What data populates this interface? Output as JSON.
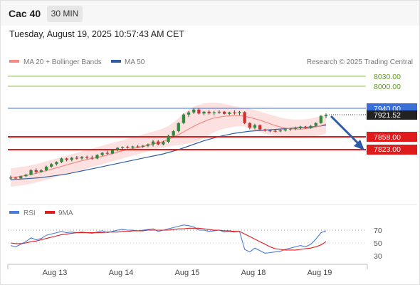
{
  "header": {
    "symbol": "Cac 40",
    "timeframe": "30 MIN",
    "datetime": "Tuesday, August 19, 2025 10:57:43 AM CET"
  },
  "legend": {
    "ma20_label": "MA 20 + Bollinger Bands",
    "ma50_label": "MA 50",
    "copyright": "Research © 2025 Trading Central",
    "rsi_label": "RSI",
    "ma9_label": "9MA"
  },
  "colors": {
    "ma20": "#f28b82",
    "ma50": "#2e5d9f",
    "band": "#fde0e0",
    "up": "#2e8b3a",
    "down": "#d32f2f",
    "resistance": "#8bc34a",
    "pivot": "#3b6fd8",
    "support": "#e01b1b",
    "arrow": "#2a5ca8",
    "rsi": "#4a7bd8",
    "rsi_ma": "#e01b1b"
  },
  "levels": {
    "r2": "8030.00",
    "r1": "8000.00",
    "pivot": "7940.00",
    "last": "7921.52",
    "s1": "7858.00",
    "s2": "7823.00"
  },
  "x_axis": [
    "Aug 13",
    "Aug 14",
    "Aug 15",
    "Aug 18",
    "Aug 19"
  ],
  "rsi_axis": [
    "70",
    "50",
    "30"
  ],
  "chart_data": {
    "type": "candlestick",
    "ylim": [
      7700,
      8060
    ],
    "candles": [
      [
        7744,
        7750,
        7738,
        7744
      ],
      [
        7744,
        7746,
        7740,
        7742
      ],
      [
        7742,
        7750,
        7740,
        7748
      ],
      [
        7748,
        7755,
        7745,
        7752
      ],
      [
        7752,
        7768,
        7750,
        7765
      ],
      [
        7765,
        7770,
        7755,
        7760
      ],
      [
        7760,
        7768,
        7758,
        7765
      ],
      [
        7765,
        7778,
        7762,
        7775
      ],
      [
        7775,
        7785,
        7772,
        7782
      ],
      [
        7782,
        7790,
        7778,
        7788
      ],
      [
        7788,
        7800,
        7785,
        7798
      ],
      [
        7798,
        7800,
        7790,
        7794
      ],
      [
        7794,
        7802,
        7790,
        7800
      ],
      [
        7800,
        7805,
        7795,
        7798
      ],
      [
        7798,
        7805,
        7795,
        7802
      ],
      [
        7802,
        7806,
        7796,
        7800
      ],
      [
        7800,
        7806,
        7795,
        7798
      ],
      [
        7798,
        7810,
        7796,
        7808
      ],
      [
        7808,
        7816,
        7805,
        7814
      ],
      [
        7814,
        7820,
        7808,
        7812
      ],
      [
        7812,
        7825,
        7810,
        7822
      ],
      [
        7822,
        7830,
        7818,
        7828
      ],
      [
        7828,
        7832,
        7824,
        7830
      ],
      [
        7830,
        7834,
        7826,
        7829
      ],
      [
        7829,
        7834,
        7826,
        7832
      ],
      [
        7832,
        7836,
        7828,
        7831
      ],
      [
        7831,
        7836,
        7828,
        7834
      ],
      [
        7834,
        7840,
        7830,
        7838
      ],
      [
        7838,
        7850,
        7832,
        7846
      ],
      [
        7846,
        7850,
        7835,
        7838
      ],
      [
        7838,
        7848,
        7835,
        7845
      ],
      [
        7845,
        7865,
        7842,
        7862
      ],
      [
        7862,
        7878,
        7858,
        7875
      ],
      [
        7875,
        7900,
        7872,
        7898
      ],
      [
        7898,
        7925,
        7895,
        7922
      ],
      [
        7922,
        7932,
        7915,
        7928
      ],
      [
        7928,
        7940,
        7924,
        7936
      ],
      [
        7936,
        7940,
        7922,
        7925
      ],
      [
        7925,
        7932,
        7920,
        7930
      ],
      [
        7930,
        7934,
        7922,
        7926
      ],
      [
        7926,
        7932,
        7920,
        7928
      ],
      [
        7928,
        7934,
        7924,
        7930
      ],
      [
        7930,
        7932,
        7922,
        7924
      ],
      [
        7924,
        7930,
        7920,
        7928
      ],
      [
        7928,
        7934,
        7922,
        7926
      ],
      [
        7926,
        7932,
        7920,
        7929
      ],
      [
        7929,
        7931,
        7895,
        7898
      ],
      [
        7898,
        7900,
        7880,
        7885
      ],
      [
        7885,
        7896,
        7880,
        7892
      ],
      [
        7892,
        7894,
        7878,
        7880
      ],
      [
        7880,
        7882,
        7874,
        7877
      ],
      [
        7877,
        7880,
        7872,
        7876
      ],
      [
        7876,
        7880,
        7872,
        7875
      ],
      [
        7875,
        7880,
        7872,
        7877
      ],
      [
        7877,
        7882,
        7874,
        7880
      ],
      [
        7880,
        7884,
        7876,
        7882
      ],
      [
        7882,
        7888,
        7878,
        7885
      ],
      [
        7885,
        7890,
        7880,
        7888
      ],
      [
        7888,
        7890,
        7882,
        7884
      ],
      [
        7884,
        7892,
        7882,
        7890
      ],
      [
        7890,
        7900,
        7888,
        7898
      ],
      [
        7898,
        7920,
        7896,
        7918
      ],
      [
        7918,
        7925,
        7912,
        7921.52
      ]
    ],
    "ma20": [
      7745,
      7746,
      7748,
      7750,
      7753,
      7756,
      7760,
      7764,
      7768,
      7772,
      7776,
      7780,
      7784,
      7788,
      7792,
      7795,
      7798,
      7801,
      7804,
      7808,
      7812,
      7816,
      7820,
      7823,
      7826,
      7829,
      7832,
      7835,
      7839,
      7842,
      7846,
      7852,
      7858,
      7865,
      7873,
      7881,
      7889,
      7896,
      7902,
      7908,
      7912,
      7915,
      7917,
      7918,
      7919,
      7919,
      7917,
      7914,
      7910,
      7906,
      7901,
      7896,
      7891,
      7887,
      7884,
      7882,
      7881,
      7881,
      7882,
      7884,
      7887,
      7891,
      7895
    ],
    "ma50": [
      7738,
      7739,
      7740,
      7741,
      7742,
      7743,
      7744,
      7746,
      7748,
      7750,
      7752,
      7754,
      7757,
      7760,
      7763,
      7766,
      7769,
      7772,
      7775,
      7778,
      7781,
      7784,
      7787,
      7790,
      7793,
      7796,
      7799,
      7802,
      7805,
      7808,
      7811,
      7815,
      7819,
      7823,
      7828,
      7833,
      7838,
      7843,
      7848,
      7852,
      7856,
      7860,
      7863,
      7866,
      7869,
      7871,
      7873,
      7875,
      7876,
      7877,
      7878,
      7879,
      7880,
      7881,
      7882,
      7883,
      7884,
      7885,
      7886,
      7887,
      7888,
      7890,
      7892
    ],
    "band_upper": [
      7770,
      7772,
      7774,
      7776,
      7779,
      7782,
      7786,
      7790,
      7794,
      7798,
      7802,
      7806,
      7810,
      7814,
      7818,
      7822,
      7826,
      7830,
      7834,
      7838,
      7842,
      7846,
      7850,
      7854,
      7858,
      7862,
      7866,
      7870,
      7874,
      7878,
      7883,
      7890,
      7900,
      7912,
      7925,
      7935,
      7944,
      7950,
      7953,
      7955,
      7955,
      7954,
      7952,
      7949,
      7945,
      7942,
      7940,
      7938,
      7935,
      7930,
      7926,
      7922,
      7918,
      7914,
      7911,
      7909,
      7908,
      7908,
      7909,
      7911,
      7914,
      7918,
      7922
    ],
    "band_lower": [
      7718,
      7720,
      7722,
      7724,
      7727,
      7730,
      7734,
      7738,
      7742,
      7746,
      7750,
      7754,
      7758,
      7762,
      7766,
      7770,
      7774,
      7778,
      7782,
      7786,
      7790,
      7794,
      7798,
      7802,
      7806,
      7810,
      7814,
      7818,
      7822,
      7826,
      7829,
      7832,
      7834,
      7836,
      7838,
      7840,
      7842,
      7848,
      7856,
      7864,
      7872,
      7878,
      7882,
      7885,
      7888,
      7890,
      7888,
      7882,
      7876,
      7872,
      7868,
      7864,
      7860,
      7858,
      7857,
      7856,
      7856,
      7856,
      7857,
      7858,
      7860,
      7864,
      7868
    ],
    "rsi": [
      46,
      44,
      48,
      52,
      58,
      55,
      57,
      62,
      64,
      66,
      68,
      66,
      67,
      66,
      67,
      66,
      65,
      67,
      69,
      66,
      68,
      70,
      71,
      70,
      70,
      69,
      70,
      71,
      72,
      68,
      70,
      72,
      74,
      76,
      78,
      77,
      75,
      70,
      70,
      68,
      69,
      70,
      67,
      68,
      67,
      68,
      40,
      36,
      42,
      38,
      34,
      35,
      36,
      37,
      40,
      42,
      44,
      46,
      44,
      48,
      56,
      66,
      69
    ],
    "rsi_ma": [
      50,
      49,
      49,
      50,
      52,
      53,
      55,
      57,
      59,
      61,
      63,
      64,
      65,
      66,
      66,
      66,
      66,
      66,
      66,
      67,
      67,
      67,
      68,
      68,
      69,
      69,
      69,
      70,
      70,
      70,
      70,
      70,
      71,
      72,
      72,
      73,
      73,
      73,
      72,
      71,
      70,
      70,
      69,
      69,
      68,
      68,
      64,
      60,
      56,
      52,
      48,
      44,
      41,
      40,
      39,
      39,
      39,
      40,
      41,
      42,
      44,
      47,
      52
    ]
  }
}
